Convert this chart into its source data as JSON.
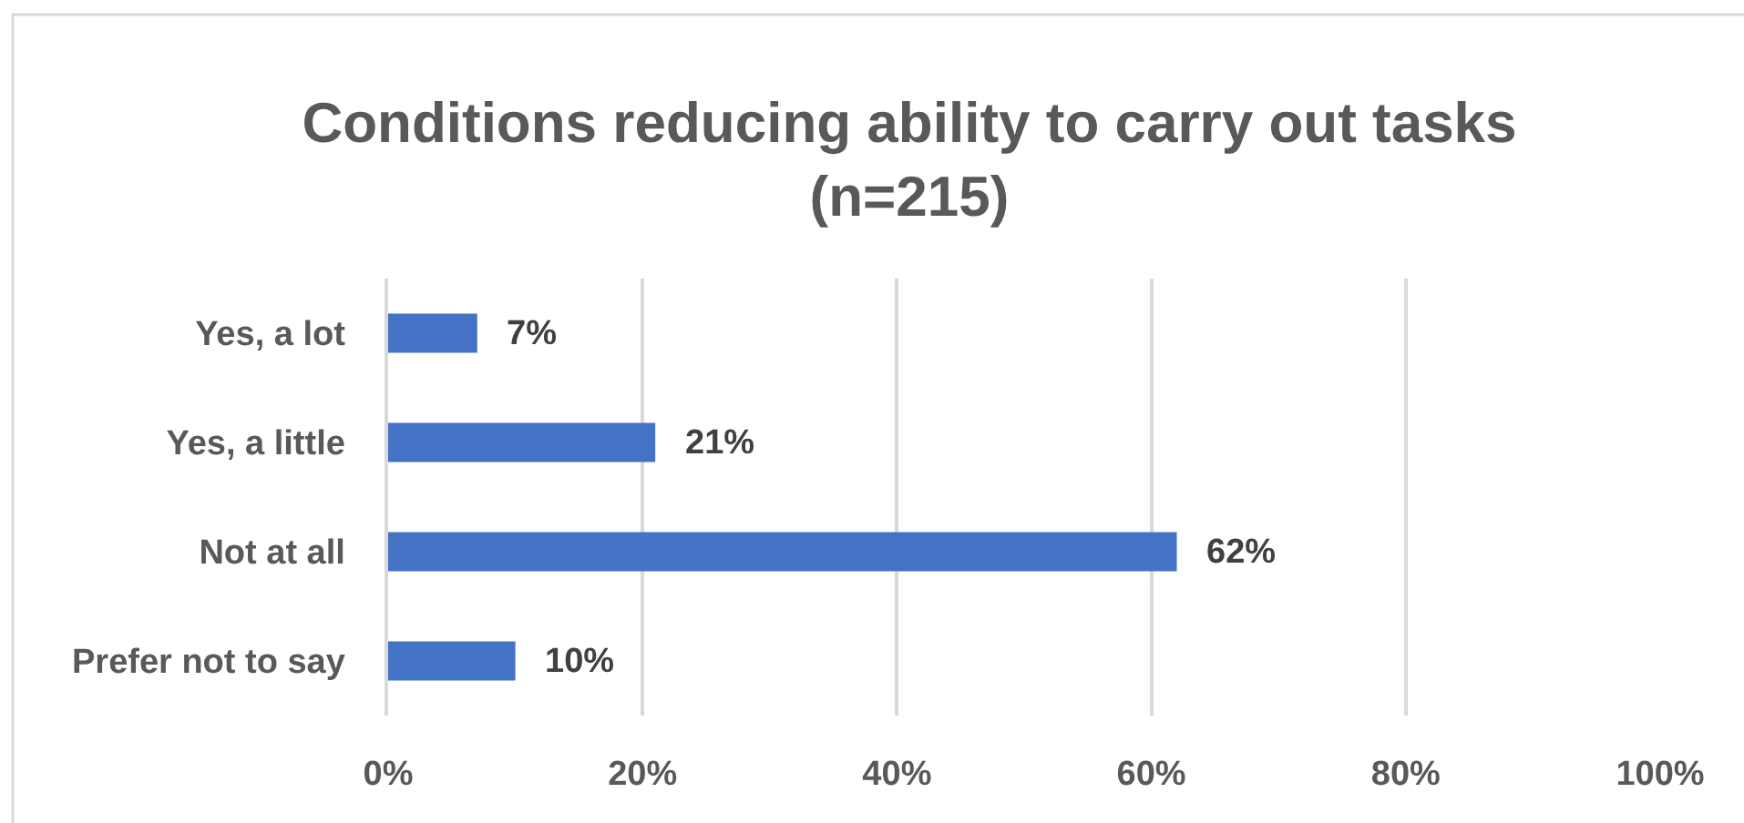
{
  "chart_data": {
    "type": "bar",
    "orientation": "horizontal",
    "title": "Conditions reducing ability to carry out tasks\n(n=215)",
    "categories": [
      "Yes, a lot",
      "Yes, a little",
      "Not at all",
      "Prefer not to say"
    ],
    "values": [
      7,
      21,
      62,
      10
    ],
    "value_labels": [
      "7%",
      "21%",
      "62%",
      "10%"
    ],
    "color": "#4472c4",
    "xlim": [
      0,
      100
    ],
    "xticks": [
      {
        "value": 0,
        "label": "0%"
      },
      {
        "value": 20,
        "label": "20%"
      },
      {
        "value": 40,
        "label": "40%"
      },
      {
        "value": 60,
        "label": "60%"
      },
      {
        "value": 80,
        "label": "80%"
      },
      {
        "value": 100,
        "label": "100%"
      }
    ],
    "grid": "x"
  }
}
